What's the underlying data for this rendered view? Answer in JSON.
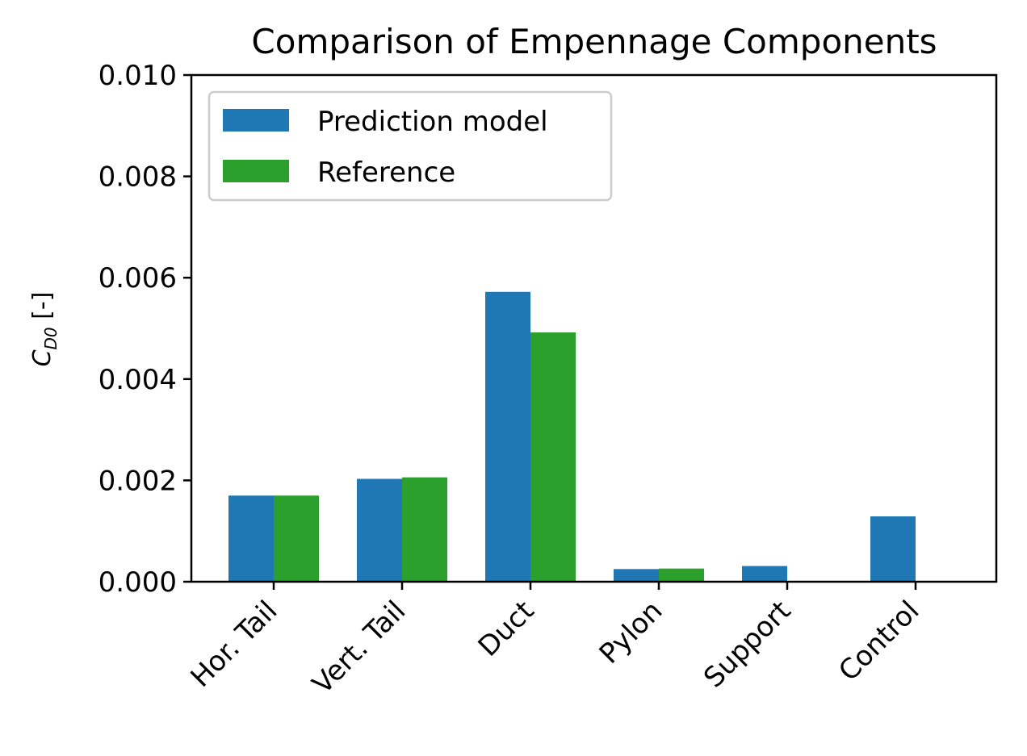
{
  "chart_data": {
    "type": "bar",
    "title": "Comparison of Empennage Components",
    "ylabel_symbol": "C",
    "ylabel_subscript": "D0",
    "ylabel_unit": " [-]",
    "ylim": [
      0,
      0.01
    ],
    "yticks": [
      "0.000",
      "0.002",
      "0.004",
      "0.006",
      "0.008",
      "0.010"
    ],
    "categories": [
      "Hor. Tail",
      "Vert. Tail",
      "Duct",
      "Pylon",
      "Support",
      "Control"
    ],
    "series": [
      {
        "name": "Prediction model",
        "color": "#1f77b4",
        "values": [
          0.0017,
          0.00203,
          0.00572,
          0.00025,
          0.00031,
          0.00129
        ]
      },
      {
        "name": "Reference",
        "color": "#2ca02c",
        "values": [
          0.0017,
          0.00206,
          0.00492,
          0.00026,
          0.0,
          0.0
        ]
      }
    ],
    "legend_position": "top-left",
    "grid": false
  }
}
